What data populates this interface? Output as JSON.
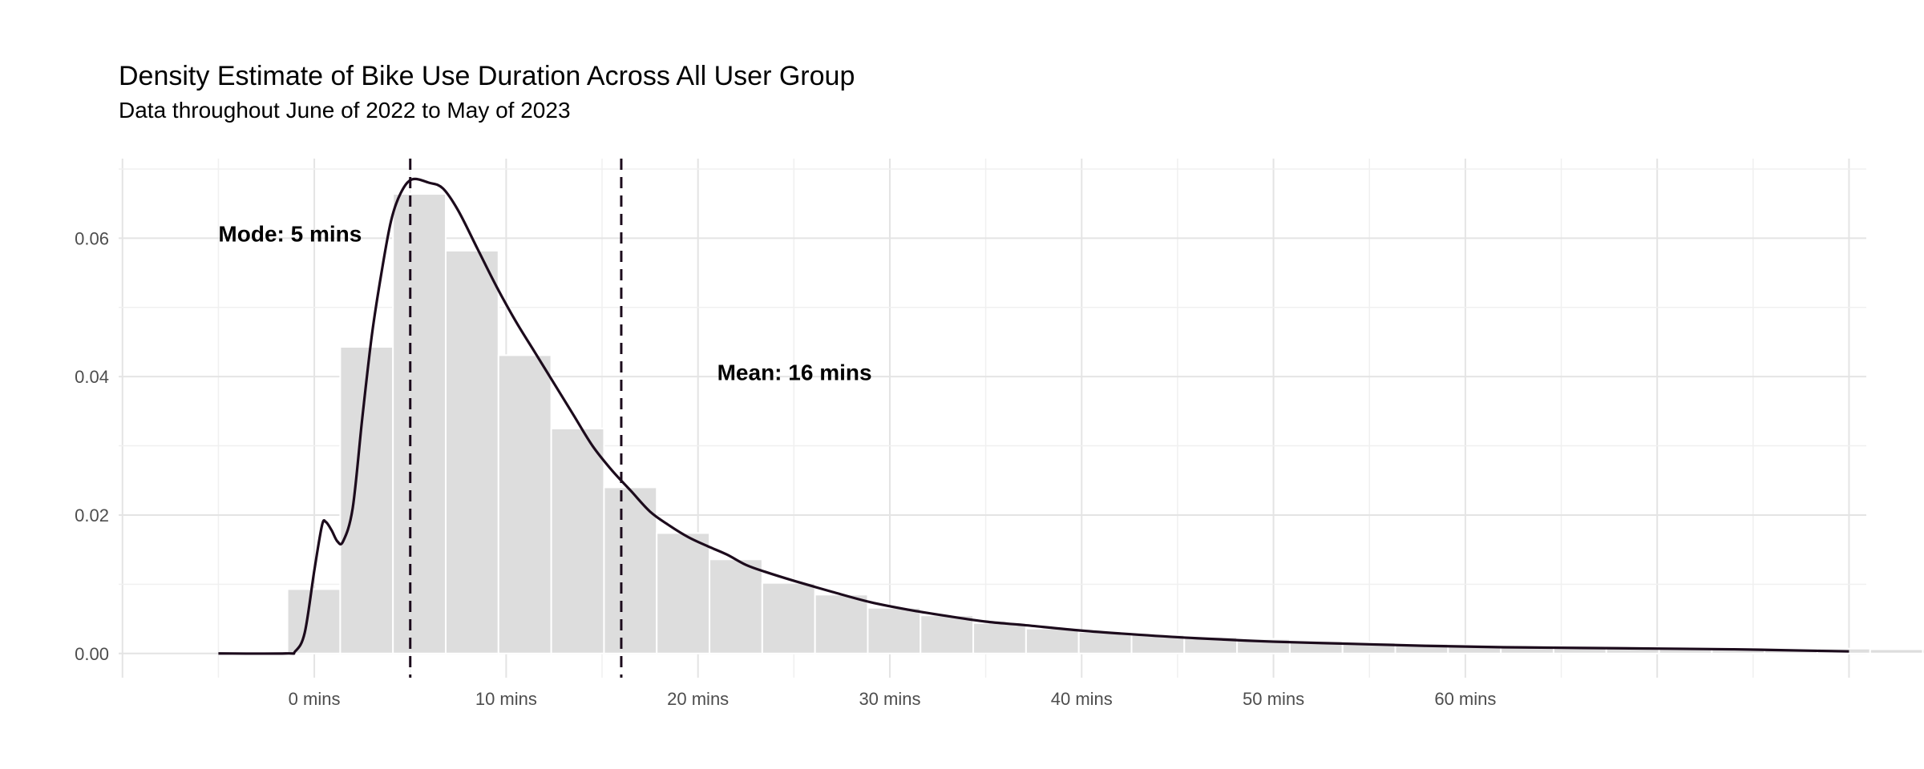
{
  "chart_data": {
    "type": "bar",
    "title": "Density Estimate of Bike Use Duration Across All User Group",
    "subtitle": "Data throughout June of 2022 to May of 2023",
    "xlabel": "",
    "ylabel": "",
    "x_tick_labels": [
      "0 mins",
      "10 mins",
      "20 mins",
      "30 mins",
      "40 mins",
      "50 mins",
      "60 mins"
    ],
    "x_tick_values": [
      0,
      10,
      20,
      30,
      40,
      50,
      60
    ],
    "y_tick_labels": [
      "0.00",
      "0.02",
      "0.04",
      "0.06"
    ],
    "y_tick_values": [
      0,
      0.02,
      0.04,
      0.06
    ],
    "xlim": [
      -10.2,
      80.9
    ],
    "ylim": [
      -0.0035,
      0.0715
    ],
    "grid": true,
    "legend": "none",
    "histogram": {
      "bin_width": 2.75,
      "bin_start": -1.4,
      "densities": [
        0.0093,
        0.0443,
        0.0664,
        0.0582,
        0.0431,
        0.0325,
        0.024,
        0.0174,
        0.0136,
        0.0102,
        0.0085,
        0.0066,
        0.0055,
        0.0044,
        0.0036,
        0.0031,
        0.0027,
        0.0024,
        0.0021,
        0.0018,
        0.0016,
        0.0014,
        0.0012,
        0.0011,
        0.001,
        0.0009,
        0.0008,
        0.0008,
        0.0007,
        0.0007,
        0.0006,
        0.0006,
        0.0005,
        0.0005,
        0.0004,
        0.0004,
        0.0003,
        0.0003,
        0.0003,
        0.0002,
        0.0002
      ],
      "color": "#dddddd"
    },
    "density_curve": {
      "color": "#1c0b1c",
      "points": [
        [
          -5,
          0
        ],
        [
          -1.5,
          0
        ],
        [
          -1,
          0.0003
        ],
        [
          -0.5,
          0.003
        ],
        [
          0,
          0.012
        ],
        [
          0.4,
          0.0185
        ],
        [
          0.6,
          0.019
        ],
        [
          0.9,
          0.0178
        ],
        [
          1.2,
          0.0162
        ],
        [
          1.5,
          0.0162
        ],
        [
          2,
          0.021
        ],
        [
          2.5,
          0.034
        ],
        [
          3,
          0.046
        ],
        [
          3.5,
          0.055
        ],
        [
          4,
          0.0625
        ],
        [
          4.5,
          0.0665
        ],
        [
          5.1,
          0.0685
        ],
        [
          6,
          0.068
        ],
        [
          6.7,
          0.0672
        ],
        [
          7.5,
          0.064
        ],
        [
          8.5,
          0.0585
        ],
        [
          9.5,
          0.053
        ],
        [
          10.5,
          0.048
        ],
        [
          11.5,
          0.0435
        ],
        [
          12.5,
          0.039
        ],
        [
          13.5,
          0.0345
        ],
        [
          14.5,
          0.03
        ],
        [
          15.5,
          0.0265
        ],
        [
          16.5,
          0.0235
        ],
        [
          17.5,
          0.0205
        ],
        [
          18.5,
          0.0185
        ],
        [
          19.5,
          0.0168
        ],
        [
          20.5,
          0.0155
        ],
        [
          21.5,
          0.0143
        ],
        [
          22.5,
          0.0128
        ],
        [
          23.5,
          0.0118
        ],
        [
          25,
          0.0105
        ],
        [
          27,
          0.0089
        ],
        [
          29,
          0.0074
        ],
        [
          31,
          0.0063
        ],
        [
          33,
          0.0054
        ],
        [
          35,
          0.0046
        ],
        [
          37,
          0.0041
        ],
        [
          40,
          0.0033
        ],
        [
          43,
          0.0027
        ],
        [
          46,
          0.0022
        ],
        [
          50,
          0.0017
        ],
        [
          54,
          0.0014
        ],
        [
          58,
          0.0011
        ],
        [
          62,
          0.0009
        ],
        [
          66,
          0.0008
        ],
        [
          70,
          0.0007
        ],
        [
          74,
          0.0006
        ],
        [
          78,
          0.0004
        ],
        [
          80,
          0.0003
        ]
      ]
    },
    "reference_lines": [
      {
        "name": "mode",
        "x": 5,
        "style": "dashed",
        "color": "#1c0b1c"
      },
      {
        "name": "mean",
        "x": 16,
        "style": "dashed",
        "color": "#1c0b1c"
      }
    ],
    "annotations": [
      {
        "text": "Mode: 5 mins",
        "x": -5,
        "y": 0.0595
      },
      {
        "text": "Mean: 16 mins",
        "x": 21,
        "y": 0.0395
      }
    ]
  }
}
